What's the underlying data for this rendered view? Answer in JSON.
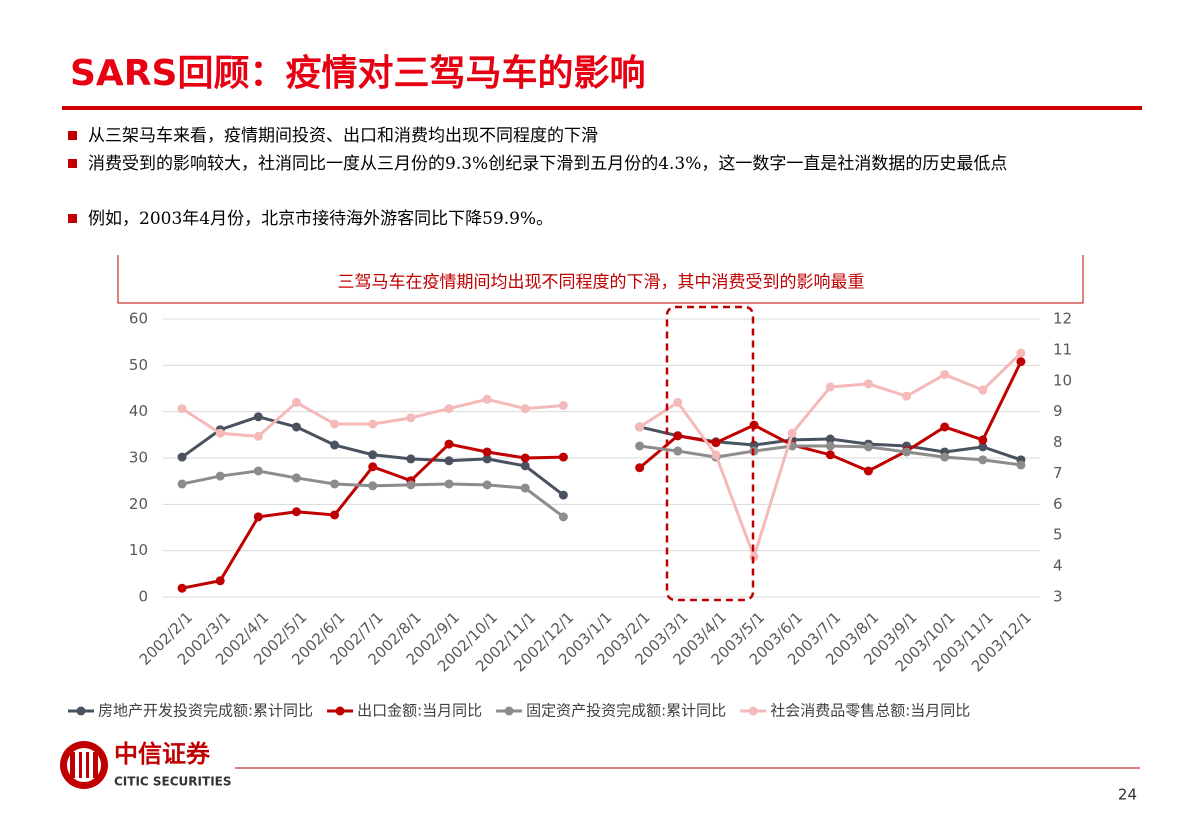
{
  "header": {
    "title": "SARS回顾：疫情对三驾马车的影响"
  },
  "bullets": [
    "从三架马车来看，疫情期间投资、出口和消费均出现不同程度的下滑",
    "消费受到的影响较大，社消同比一度从三月份的9.3%创纪录下滑到五月份的4.3%，这一数字一直是社消数据的历史最低点",
    "例如，2003年4月份，北京市接待海外游客同比下降59.9%。"
  ],
  "chart_data": {
    "type": "line",
    "title": "三驾马车在疫情期间均出现不同程度的下滑，其中消费受到的影响最重",
    "categories": [
      "2002/2/1",
      "2002/3/1",
      "2002/4/1",
      "2002/5/1",
      "2002/6/1",
      "2002/7/1",
      "2002/8/1",
      "2002/9/1",
      "2002/10/1",
      "2002/11/1",
      "2002/12/1",
      "2003/1/1",
      "2003/2/1",
      "2003/3/1",
      "2003/4/1",
      "2003/5/1",
      "2003/6/1",
      "2003/7/1",
      "2003/8/1",
      "2003/9/1",
      "2003/10/1",
      "2003/11/1",
      "2003/12/1"
    ],
    "series": [
      {
        "name": "房地产开发投资完成额:累计同比",
        "color": "#4a5260",
        "values": [
          30.2,
          36.1,
          38.9,
          36.7,
          32.8,
          30.7,
          29.8,
          29.4,
          29.8,
          28.3,
          22.0,
          null,
          36.7,
          34.8,
          33.5,
          32.8,
          33.9,
          34.1,
          33.0,
          32.6,
          31.3,
          32.4,
          29.6
        ]
      },
      {
        "name": "出口金额:当月同比",
        "color": "#c00000",
        "values": [
          1.9,
          3.5,
          17.3,
          18.4,
          17.7,
          28.1,
          25.1,
          33.0,
          31.3,
          30.0,
          30.2,
          null,
          27.9,
          34.8,
          33.3,
          37.1,
          32.8,
          30.7,
          27.2,
          31.5,
          36.7,
          33.9,
          50.8
        ]
      },
      {
        "name": "固定资产投资完成额:累计同比",
        "color": "#8c8c8c",
        "values": [
          24.4,
          26.1,
          27.2,
          25.7,
          24.4,
          24.0,
          24.2,
          24.4,
          24.2,
          23.5,
          17.3,
          null,
          32.6,
          31.5,
          30.2,
          31.5,
          32.6,
          32.6,
          32.4,
          31.3,
          30.2,
          29.6,
          28.5
        ]
      },
      {
        "name": "社会消费品零售总额:当月同比",
        "color": "#f5b9b9",
        "axis": "y2",
        "values": [
          9.1,
          8.3,
          8.2,
          9.3,
          8.6,
          8.6,
          8.8,
          9.1,
          9.4,
          9.1,
          9.2,
          null,
          8.5,
          9.3,
          7.6,
          4.3,
          8.3,
          9.8,
          9.9,
          9.5,
          10.2,
          9.7,
          10.9
        ]
      }
    ],
    "ylim": [
      0,
      60
    ],
    "yticks": [
      0,
      10,
      20,
      30,
      40,
      50,
      60
    ],
    "y2lim": [
      3,
      12
    ],
    "y2ticks": [
      3,
      4,
      5,
      6,
      7,
      8,
      9,
      10,
      11,
      12
    ],
    "grid": true,
    "legend": "bottom"
  },
  "footer": {
    "logo": "中信证券",
    "logo_en": "CITIC SECURITIES",
    "page": "24"
  }
}
